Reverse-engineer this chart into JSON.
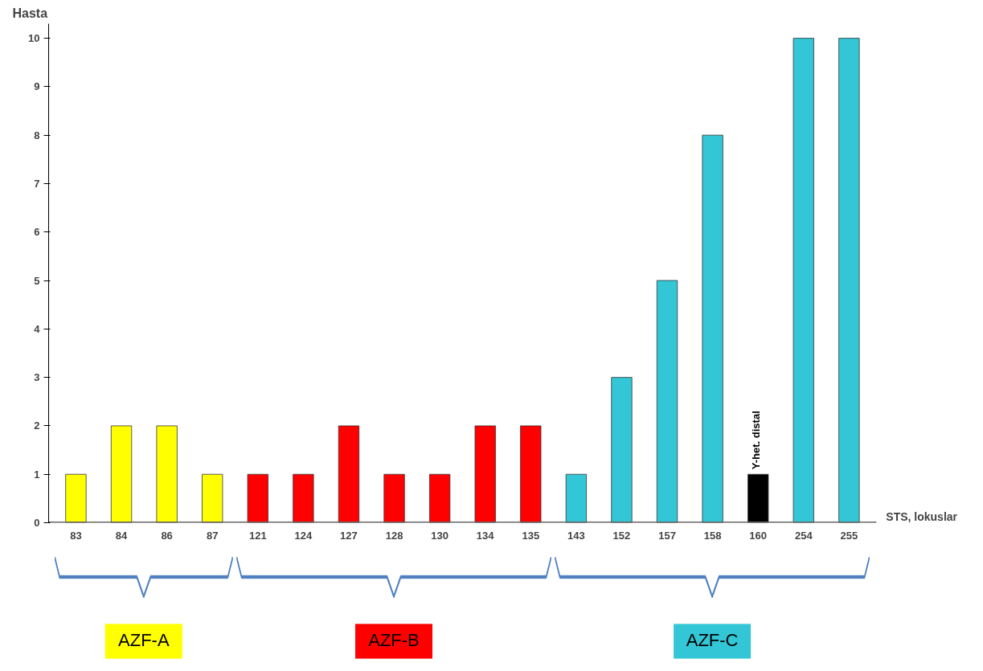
{
  "chart_data": {
    "type": "bar",
    "ylabel": "Hasta",
    "xlabel": "STS, lokuslar",
    "categories": [
      "83",
      "84",
      "86",
      "87",
      "121",
      "124",
      "127",
      "128",
      "130",
      "134",
      "135",
      "143",
      "152",
      "157",
      "158",
      "160",
      "254",
      "255"
    ],
    "values": [
      1,
      2,
      2,
      1,
      1,
      1,
      2,
      1,
      1,
      2,
      2,
      1,
      3,
      5,
      8,
      1,
      10,
      10
    ],
    "colors": [
      "#ffff00",
      "#ffff00",
      "#ffff00",
      "#ffff00",
      "#ff0000",
      "#ff0000",
      "#ff0000",
      "#ff0000",
      "#ff0000",
      "#ff0000",
      "#ff0000",
      "#33c6d6",
      "#33c6d6",
      "#33c6d6",
      "#33c6d6",
      "#000000",
      "#33c6d6",
      "#33c6d6"
    ],
    "ylim": [
      0,
      10.3
    ],
    "yticks": [
      0,
      1,
      2,
      3,
      4,
      5,
      6,
      7,
      8,
      9,
      10
    ],
    "grid": false,
    "annotations": [
      {
        "text": "Y-het. distal",
        "x": "160",
        "y": 1
      },
      "AZF-A",
      "AZF-B",
      "AZF-C"
    ]
  }
}
